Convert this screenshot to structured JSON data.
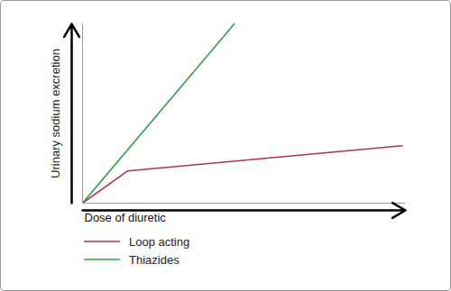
{
  "chart_data": {
    "type": "line",
    "x_label": "Dose of diuretic",
    "y_label": "Urinary sodium excretion",
    "xlim": [
      0,
      100
    ],
    "ylim": [
      0,
      100
    ],
    "xticks": [],
    "yticks": [],
    "tick_labels": false,
    "legend": "bottom",
    "series": [
      {
        "name": "Loop acting",
        "color": "#a8345a",
        "x": [
          0,
          14,
          99
        ],
        "values": [
          0,
          18,
          32
        ]
      },
      {
        "name": "Thiazides",
        "color": "#3a9c48",
        "x": [
          0,
          47
        ],
        "values": [
          0,
          100
        ]
      }
    ]
  }
}
